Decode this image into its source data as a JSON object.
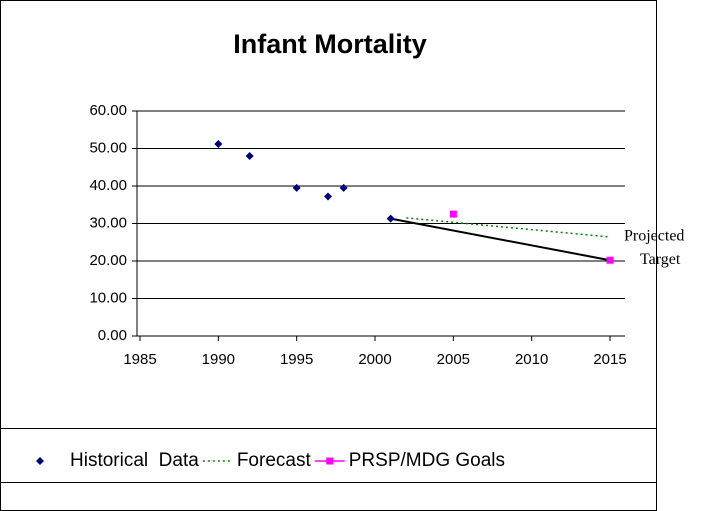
{
  "chart_data": {
    "type": "scatter",
    "title": "Infant Mortality",
    "xlim": [
      1985,
      2015
    ],
    "xticks": [
      1985,
      1990,
      1995,
      2000,
      2005,
      2010,
      2015
    ],
    "ylim": [
      0,
      60
    ],
    "yticks": [
      {
        "value": 0,
        "label": "0.00"
      },
      {
        "value": 10,
        "label": "10.00"
      },
      {
        "value": 20,
        "label": "20.00"
      },
      {
        "value": 30,
        "label": "30.00"
      },
      {
        "value": 40,
        "label": "40.00"
      },
      {
        "value": 50,
        "label": "50.00"
      },
      {
        "value": 60,
        "label": "60.00"
      }
    ],
    "grid": true,
    "legend": "bottom",
    "series": [
      {
        "name": "Historical  Data",
        "color": "#000080",
        "marker": "diamond",
        "line": "none",
        "legend_line": false,
        "x": [
          1990,
          1992,
          1995,
          1997,
          1998,
          2001
        ],
        "values": [
          51.2,
          48.0,
          39.5,
          37.2,
          39.5,
          31.3
        ]
      },
      {
        "name": "Forecast",
        "color": "#008000",
        "marker": "none",
        "line": "dotted",
        "legend_line": true,
        "x": [
          2002,
          2015
        ],
        "values": [
          31.5,
          26.4
        ]
      },
      {
        "name": "PRSP/MDG Goals",
        "color": "#ff00ff",
        "marker": "square",
        "line": "none",
        "legend_line": true,
        "x": [
          2005,
          2015
        ],
        "values": [
          32.5,
          20.2
        ]
      }
    ],
    "target_line": {
      "color": "#000000",
      "x": [
        2001,
        2015
      ],
      "values": [
        31.3,
        20.2
      ]
    },
    "annotations": [
      {
        "text": "Projected",
        "x": 2015,
        "y": 26.4
      },
      {
        "text": "Target",
        "x": 2015,
        "y": 20.2
      }
    ]
  }
}
